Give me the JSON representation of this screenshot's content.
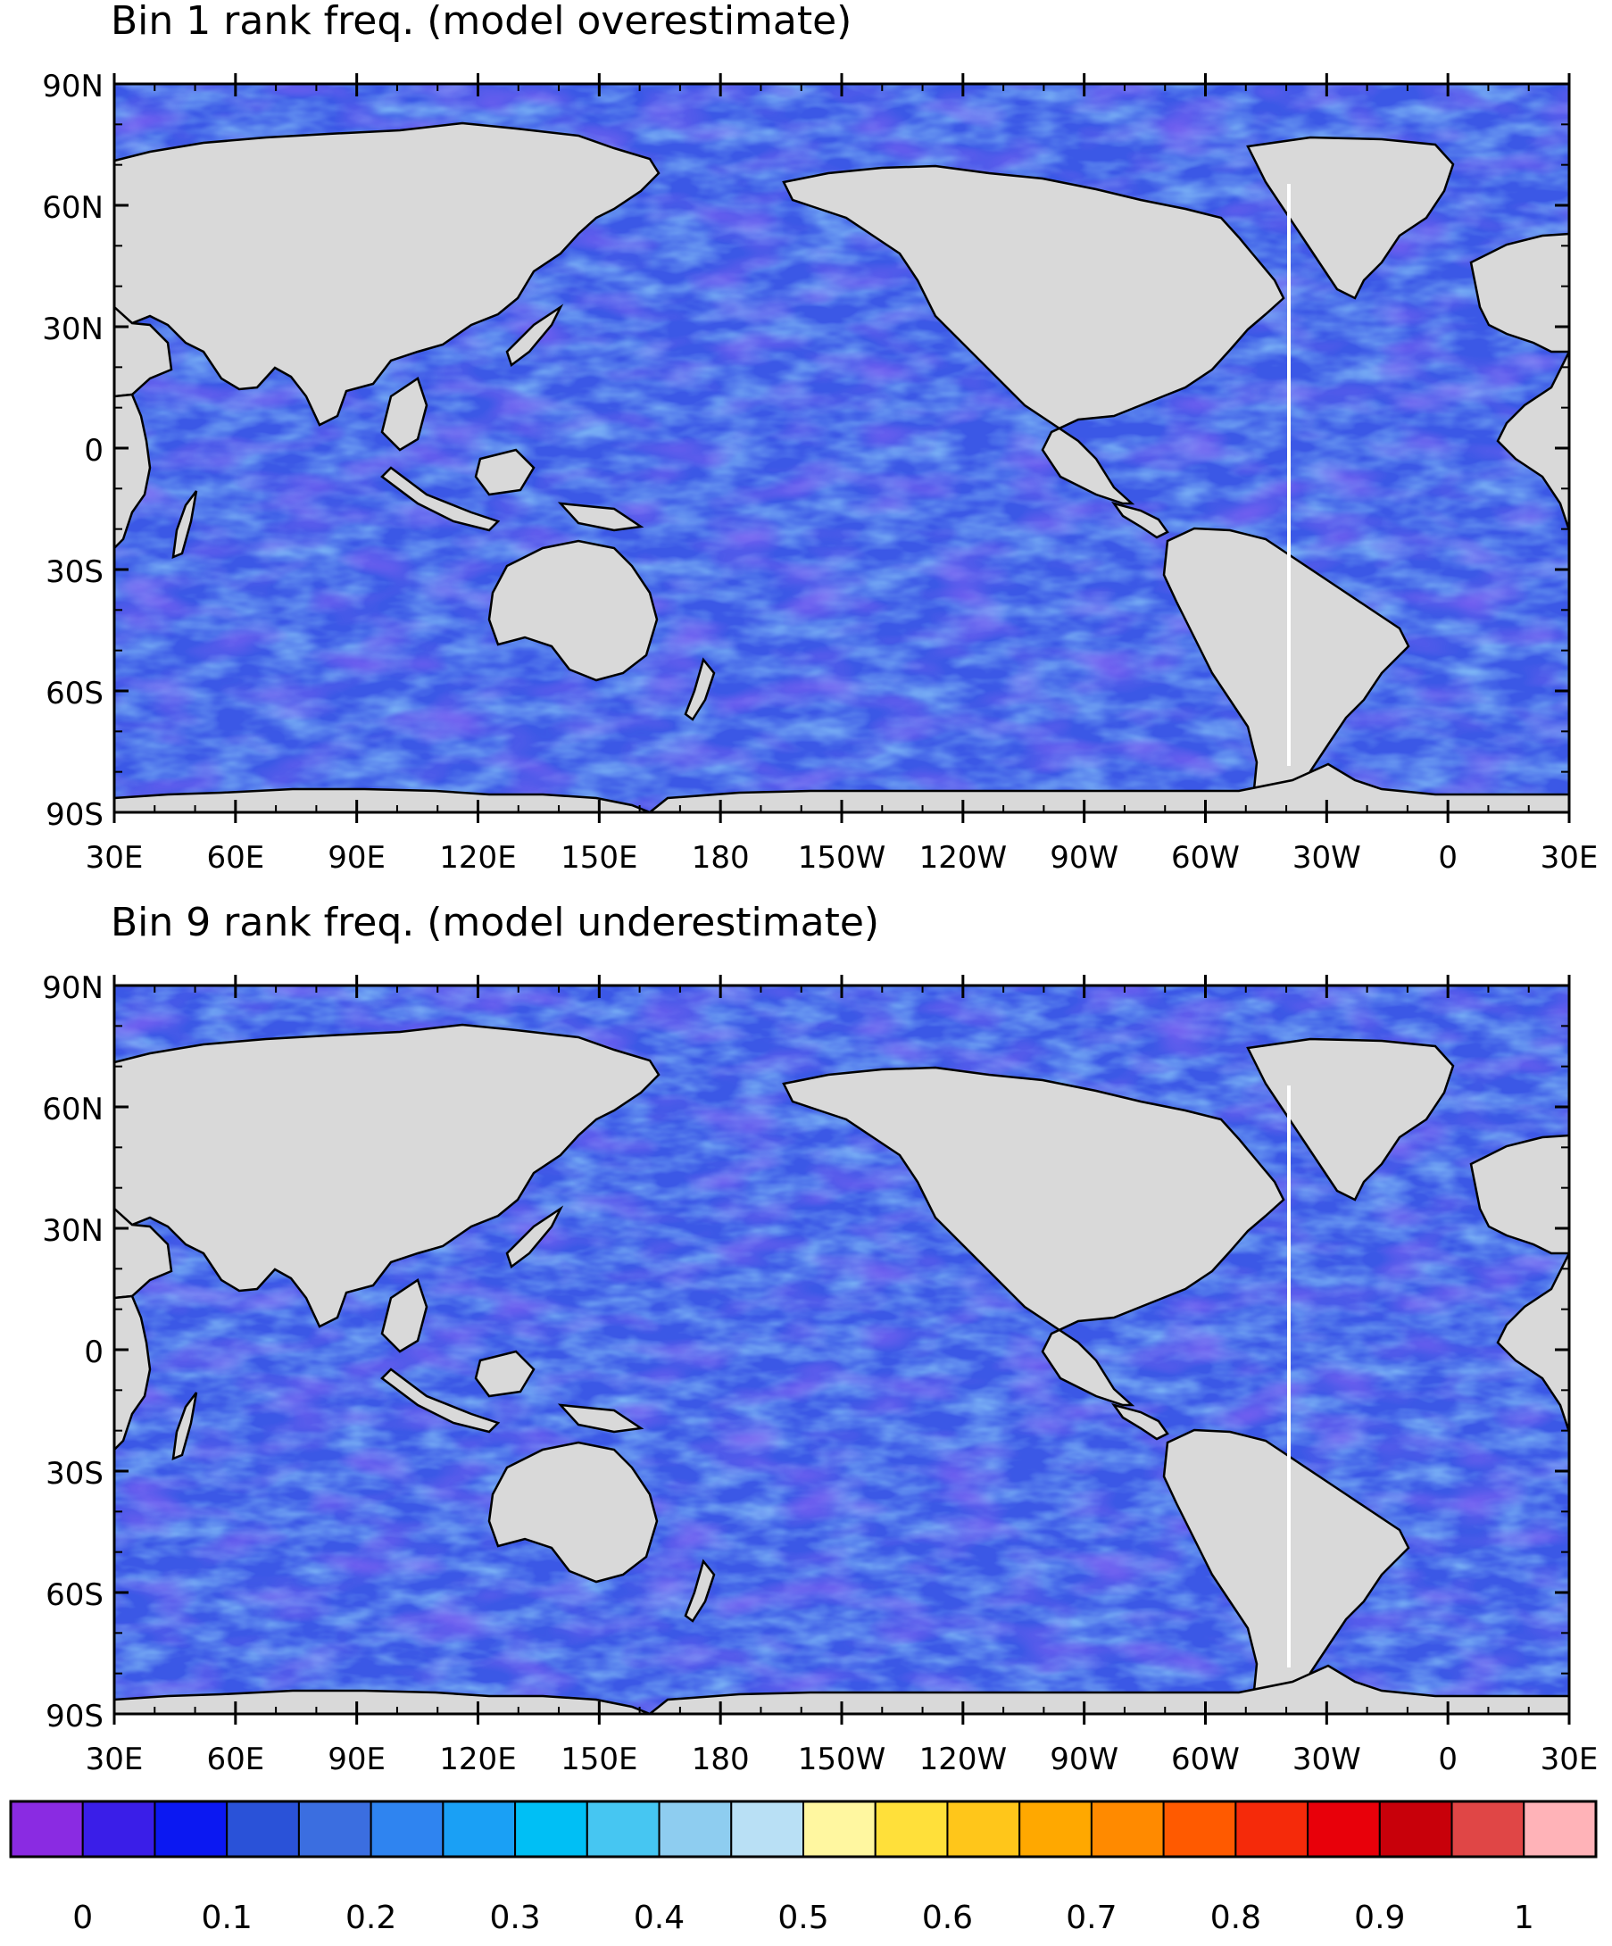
{
  "panels": [
    {
      "title": "Bin 1 rank freq. (model overestimate)",
      "lat_labels": [
        "90N",
        "60N",
        "30N",
        "0",
        "30S",
        "60S",
        "90S"
      ],
      "lon_labels": [
        "30E",
        "60E",
        "90E",
        "120E",
        "150E",
        "180",
        "150W",
        "120W",
        "90W",
        "60W",
        "30W",
        "0",
        "30E"
      ]
    },
    {
      "title": "Bin 9 rank freq. (model underestimate)",
      "lat_labels": [
        "90N",
        "60N",
        "30N",
        "0",
        "30S",
        "60S",
        "90S"
      ],
      "lon_labels": [
        "30E",
        "60E",
        "90E",
        "120E",
        "150E",
        "180",
        "150W",
        "120W",
        "90W",
        "60W",
        "30W",
        "0",
        "30E"
      ]
    }
  ],
  "colorbar": {
    "labels": [
      "0",
      "0.1",
      "0.2",
      "0.3",
      "0.4",
      "0.5",
      "0.6",
      "0.7",
      "0.8",
      "0.9",
      "1"
    ],
    "colors": [
      "#8a2be2",
      "#3a1ee8",
      "#0b18f2",
      "#2a52d8",
      "#3b6ee0",
      "#2f84f0",
      "#1aa0f5",
      "#00bff5",
      "#46c6f2",
      "#8ecdf0",
      "#b9e0f5",
      "#fff7a0",
      "#ffe03a",
      "#ffc61a",
      "#ffa800",
      "#ff8a00",
      "#ff5a00",
      "#f52a0a",
      "#e8000a",
      "#c8000a",
      "#e04646",
      "#ffb3b8"
    ]
  },
  "map_style": {
    "land": "#d9d9d9",
    "ocean_base": "#3b58e6",
    "ocean_light": "#5a8ee9",
    "ocean_dark": "#3a20e4",
    "coast": "#000000"
  }
}
